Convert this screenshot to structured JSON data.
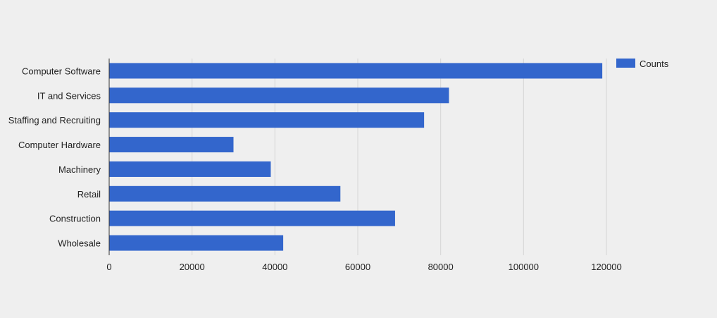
{
  "chart_data": {
    "type": "bar",
    "orientation": "horizontal",
    "categories": [
      "Computer Software",
      "IT and Services",
      "Staffing and Recruiting",
      "Computer Hardware",
      "Machinery",
      "Retail",
      "Construction",
      "Wholesale"
    ],
    "series": [
      {
        "name": "Counts",
        "values": [
          119000,
          82000,
          76000,
          30000,
          39000,
          55800,
          69000,
          42000
        ],
        "color": "#3366cc"
      }
    ],
    "xlim": [
      0,
      120000
    ],
    "x_ticks": [
      0,
      20000,
      40000,
      60000,
      80000,
      100000,
      120000
    ],
    "grid": true,
    "legend_position": "top-right"
  }
}
